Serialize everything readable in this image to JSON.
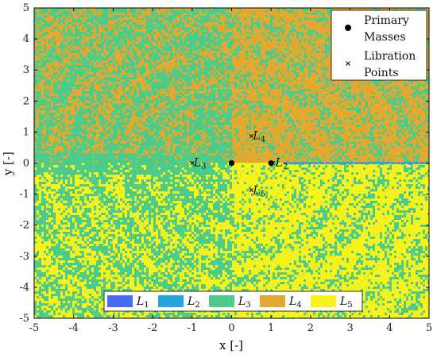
{
  "chart_data": {
    "type": "heatmap",
    "title": "",
    "xlabel": "x [-]",
    "ylabel": "y [-]",
    "xlim": [
      -5,
      5
    ],
    "ylim": [
      -5,
      5
    ],
    "x_ticks": [
      -5,
      -4,
      -3,
      -2,
      -1,
      0,
      1,
      2,
      3,
      4,
      5
    ],
    "y_ticks": [
      -5,
      -4,
      -3,
      -2,
      -1,
      0,
      1,
      2,
      3,
      4,
      5
    ],
    "x_tick_labels": [
      "-5",
      "-4",
      "-3",
      "-2",
      "-1",
      "0",
      "1",
      "2",
      "3",
      "4",
      "5"
    ],
    "y_tick_labels": [
      "-5",
      "-4",
      "-3",
      "-2",
      "-1",
      "0",
      "1",
      "2",
      "3",
      "4",
      "5"
    ],
    "classes": [
      {
        "name": "L1",
        "label_base": "L",
        "label_sub": "1",
        "color": "#4b6cf0"
      },
      {
        "name": "L2",
        "label_base": "L",
        "label_sub": "2",
        "color": "#22a6e0"
      },
      {
        "name": "L3",
        "label_base": "L",
        "label_sub": "3",
        "color": "#4ccb8a"
      },
      {
        "name": "L4",
        "label_base": "L",
        "label_sub": "4",
        "color": "#e2a830"
      },
      {
        "name": "L5",
        "label_base": "L",
        "label_sub": "5",
        "color": "#f6f21a"
      }
    ],
    "primary_masses": [
      {
        "x": 0,
        "y": 0
      },
      {
        "x": 1,
        "y": 0
      }
    ],
    "libration_points": [
      {
        "label_base": "L",
        "label_sub": "1",
        "x": 1.0,
        "y": 0.0
      },
      {
        "label_base": "L",
        "label_sub": "2",
        "x": 1.05,
        "y": 0.0
      },
      {
        "label_base": "L",
        "label_sub": "3",
        "x": -1.0,
        "y": 0.0
      },
      {
        "label_base": "L",
        "label_sub": "4",
        "x": 0.5,
        "y": 0.87
      },
      {
        "label_base": "L",
        "label_sub": "5",
        "x": 0.5,
        "y": -0.87
      }
    ],
    "top_legend": [
      {
        "marker": "filled-circle",
        "text_line1": "Primary",
        "text_line2": "Masses"
      },
      {
        "marker": "x-cross",
        "text_line1": "Libration",
        "text_line2": "Points"
      }
    ],
    "legend_position_top": "top-right",
    "legend_position_bottom": "bottom-center",
    "grid": false
  }
}
